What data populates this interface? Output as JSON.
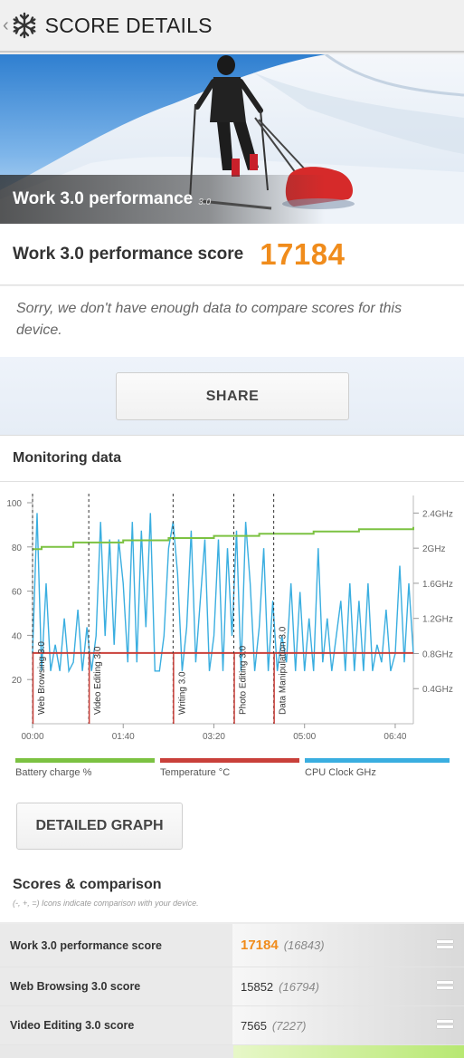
{
  "header": {
    "title": "SCORE DETAILS",
    "back_icon": "chevron-left-icon",
    "logo_icon": "snowflake-icon"
  },
  "hero": {
    "title": "Work 3.0 performance",
    "version": "3.0"
  },
  "score": {
    "label": "Work 3.0 performance score",
    "value": "17184"
  },
  "note": "Sorry, we don't have enough data to compare scores for this device.",
  "share_label": "SHARE",
  "monitoring": {
    "title": "Monitoring data",
    "detailed_graph_label": "DETAILED GRAPH",
    "legend": [
      {
        "label": "Battery charge %",
        "color": "#7cc242"
      },
      {
        "label": "Temperature °C",
        "color": "#c9403a"
      },
      {
        "label": "CPU Clock GHz",
        "color": "#3aaee0"
      }
    ]
  },
  "chart_data": {
    "type": "line",
    "x_tick_labels": [
      "00:00",
      "01:40",
      "03:20",
      "05:00",
      "06:40"
    ],
    "y_left_ticks": [
      "20",
      "40",
      "60",
      "80",
      "100"
    ],
    "y_right_ticks": [
      "0.4GHz",
      "0.8GHz",
      "1.2GHz",
      "1.6GHz",
      "2GHz",
      "2.4GHz"
    ],
    "ylim_left": [
      0,
      100
    ],
    "ylim_right_ghz": [
      0,
      2.6
    ],
    "section_markers": [
      {
        "label": "Web Browsing 3.0",
        "time_s": 0
      },
      {
        "label": "Video Editing 3.0",
        "time_s": 62
      },
      {
        "label": "Writing 3.0",
        "time_s": 155
      },
      {
        "label": "Photo Editing 3.0",
        "time_s": 222
      },
      {
        "label": "Data Manipulation 3.0",
        "time_s": 266
      }
    ],
    "series": [
      {
        "name": "Battery charge %",
        "x": [
          0,
          10,
          45,
          100,
          150,
          200,
          250,
          310,
          360,
          420
        ],
        "values": [
          79,
          80,
          82,
          83,
          84,
          85,
          86,
          87,
          88,
          89
        ]
      },
      {
        "name": "Temperature °C",
        "x": [
          0,
          60,
          160,
          260,
          420
        ],
        "values": [
          32,
          32,
          32,
          32,
          32
        ]
      },
      {
        "name": "CPU Clock GHz",
        "x": [
          0,
          5,
          10,
          15,
          20,
          25,
          30,
          35,
          40,
          45,
          50,
          55,
          60,
          65,
          70,
          75,
          80,
          85,
          90,
          95,
          100,
          105,
          110,
          115,
          120,
          125,
          130,
          135,
          140,
          145,
          150,
          155,
          160,
          165,
          170,
          175,
          180,
          185,
          190,
          195,
          200,
          205,
          210,
          215,
          220,
          225,
          230,
          235,
          240,
          245,
          250,
          255,
          260,
          265,
          270,
          275,
          280,
          285,
          290,
          295,
          300,
          305,
          310,
          315,
          320,
          325,
          330,
          335,
          340,
          345,
          350,
          355,
          360,
          365,
          370,
          375,
          380,
          385,
          390,
          395,
          400,
          405,
          410,
          415,
          420
        ],
        "values": [
          0.8,
          2.4,
          0.6,
          1.6,
          0.6,
          0.9,
          0.6,
          1.2,
          0.6,
          0.7,
          1.3,
          0.6,
          1.1,
          0.6,
          1.0,
          2.3,
          1.0,
          2.1,
          0.9,
          2.1,
          1.6,
          0.7,
          2.3,
          0.7,
          2.2,
          1.1,
          2.4,
          0.6,
          0.6,
          1.0,
          2.0,
          2.3,
          1.7,
          0.6,
          1.1,
          2.2,
          0.7,
          1.4,
          2.1,
          0.6,
          1.0,
          2.1,
          0.6,
          2.0,
          1.0,
          2.2,
          0.6,
          2.3,
          1.6,
          0.6,
          1.1,
          2.0,
          0.6,
          1.4,
          0.6,
          1.0,
          0.7,
          1.6,
          0.6,
          1.5,
          0.6,
          1.2,
          0.6,
          2.0,
          0.7,
          1.2,
          0.6,
          1.0,
          1.4,
          0.6,
          1.6,
          0.6,
          1.4,
          0.6,
          1.6,
          0.6,
          0.9,
          0.7,
          1.3,
          0.6,
          0.8,
          1.8,
          0.7,
          1.6,
          0.8
        ]
      }
    ]
  },
  "scores": {
    "title": "Scores & comparison",
    "subtitle": "(-, +, =) Icons indicate comparison with your device.",
    "rows": [
      {
        "label": "Work 3.0 performance score",
        "value": "17184",
        "compare": "(16843)",
        "icon": "equals-icon"
      },
      {
        "label": "Web Browsing 3.0 score",
        "value": "15852",
        "compare": "(16794)",
        "icon": "equals-icon"
      },
      {
        "label": "Video Editing 3.0 score",
        "value": "7565",
        "compare": "(7227)",
        "icon": "equals-icon"
      }
    ]
  }
}
